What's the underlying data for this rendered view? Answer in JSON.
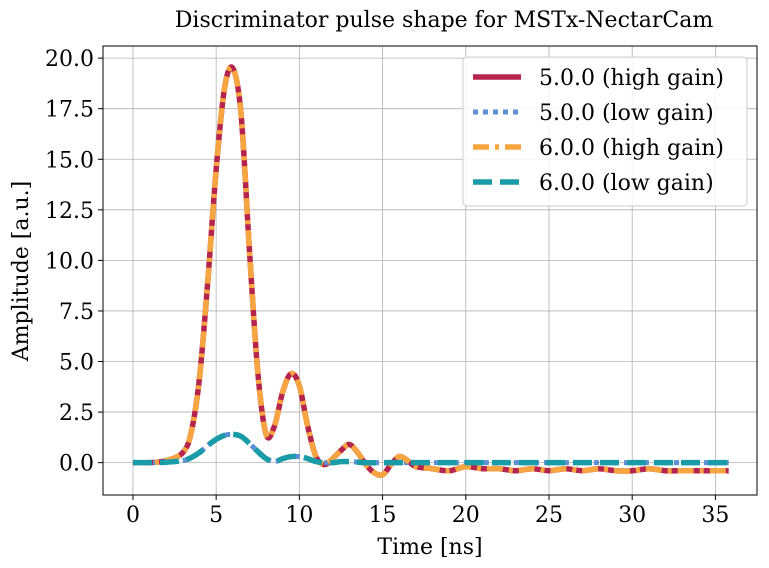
{
  "chart_data": {
    "type": "line",
    "title": "Discriminator pulse shape for MSTx-NectarCam",
    "xlabel": "Time [ns]",
    "ylabel": "Amplitude [a.u.]",
    "xlim": [
      -1.8,
      37.5
    ],
    "ylim": [
      -1.6,
      20.6
    ],
    "x_ticks": [
      0,
      5,
      10,
      15,
      20,
      25,
      30,
      35
    ],
    "x_tick_labels": [
      "0",
      "5",
      "10",
      "15",
      "20",
      "25",
      "30",
      "35"
    ],
    "y_ticks": [
      0.0,
      2.5,
      5.0,
      7.5,
      10.0,
      12.5,
      15.0,
      17.5,
      20.0
    ],
    "y_tick_labels": [
      "0.0",
      "2.5",
      "5.0",
      "7.5",
      "10.0",
      "12.5",
      "15.0",
      "17.5",
      "20.0"
    ],
    "grid": true,
    "legend_position": "top-right",
    "series": [
      {
        "name": "5.0.0 (high gain)",
        "color": "#b5234f",
        "style": "solid",
        "x": [
          0,
          1,
          2,
          3,
          3.5,
          4,
          4.5,
          5,
          5.5,
          6,
          6.5,
          7,
          7.5,
          8,
          8.5,
          9,
          9.5,
          10,
          10.5,
          11,
          11.5,
          12,
          12.5,
          13,
          13.5,
          14,
          14.5,
          15,
          15.5,
          16,
          16.5,
          17,
          18,
          19,
          20,
          21,
          22,
          23,
          24,
          25,
          26,
          27,
          28,
          29,
          30,
          31,
          32,
          33,
          34,
          35,
          35.8
        ],
        "values": [
          0.0,
          0.0,
          0.1,
          0.5,
          1.5,
          4.2,
          9.0,
          14.5,
          18.5,
          19.5,
          17.2,
          10.5,
          4.5,
          1.4,
          1.8,
          3.5,
          4.4,
          3.8,
          1.8,
          0.3,
          -0.1,
          0.2,
          0.6,
          0.9,
          0.5,
          -0.1,
          -0.5,
          -0.6,
          -0.1,
          0.3,
          0.1,
          -0.2,
          -0.3,
          -0.4,
          -0.2,
          -0.3,
          -0.3,
          -0.4,
          -0.3,
          -0.4,
          -0.3,
          -0.4,
          -0.3,
          -0.4,
          -0.4,
          -0.3,
          -0.4,
          -0.4,
          -0.4,
          -0.4,
          -0.4
        ]
      },
      {
        "name": "5.0.0 (low gain)",
        "color": "#5b8fd6",
        "style": "dotted",
        "x": [
          0,
          1,
          2,
          3,
          3.5,
          4,
          4.5,
          5,
          5.5,
          6,
          6.5,
          7,
          7.5,
          8,
          8.5,
          9,
          9.5,
          10,
          10.5,
          11,
          11.5,
          12,
          12.5,
          13,
          14,
          15,
          16,
          18,
          20,
          25,
          30,
          35,
          35.8
        ],
        "values": [
          0.0,
          0.0,
          0.02,
          0.1,
          0.25,
          0.5,
          0.85,
          1.15,
          1.35,
          1.4,
          1.3,
          0.95,
          0.55,
          0.2,
          0.05,
          0.2,
          0.3,
          0.3,
          0.2,
          0.05,
          0.0,
          0.0,
          0.05,
          0.05,
          0.0,
          0.0,
          0.0,
          0.0,
          0.0,
          0.0,
          0.0,
          0.0,
          0.0
        ]
      },
      {
        "name": "6.0.0 (high gain)",
        "color": "#f7a541",
        "style": "dashdot",
        "x": [
          0,
          1,
          2,
          3,
          3.5,
          4,
          4.5,
          5,
          5.5,
          6,
          6.5,
          7,
          7.5,
          8,
          8.5,
          9,
          9.5,
          10,
          10.5,
          11,
          11.5,
          12,
          12.5,
          13,
          13.5,
          14,
          14.5,
          15,
          15.5,
          16,
          16.5,
          17,
          18,
          19,
          20,
          21,
          22,
          23,
          24,
          25,
          26,
          27,
          28,
          29,
          30,
          31,
          32,
          33,
          34,
          35,
          35.8
        ],
        "values": [
          0.0,
          0.0,
          0.1,
          0.5,
          1.5,
          4.2,
          9.0,
          14.5,
          18.5,
          19.5,
          17.2,
          10.5,
          4.5,
          1.4,
          1.8,
          3.5,
          4.4,
          3.8,
          1.8,
          0.3,
          -0.1,
          0.2,
          0.6,
          0.9,
          0.5,
          -0.1,
          -0.5,
          -0.6,
          -0.1,
          0.3,
          0.1,
          -0.2,
          -0.3,
          -0.4,
          -0.2,
          -0.3,
          -0.3,
          -0.4,
          -0.3,
          -0.4,
          -0.3,
          -0.4,
          -0.3,
          -0.4,
          -0.4,
          -0.3,
          -0.4,
          -0.4,
          -0.4,
          -0.4,
          -0.4
        ]
      },
      {
        "name": "6.0.0 (low gain)",
        "color": "#1a9ba8",
        "style": "dashed",
        "x": [
          0,
          1,
          2,
          3,
          3.5,
          4,
          4.5,
          5,
          5.5,
          6,
          6.5,
          7,
          7.5,
          8,
          8.5,
          9,
          9.5,
          10,
          10.5,
          11,
          11.5,
          12,
          12.5,
          13,
          14,
          15,
          16,
          18,
          20,
          25,
          30,
          35,
          35.8
        ],
        "values": [
          0.0,
          0.0,
          0.02,
          0.1,
          0.25,
          0.5,
          0.85,
          1.15,
          1.35,
          1.4,
          1.3,
          0.95,
          0.55,
          0.2,
          0.05,
          0.2,
          0.3,
          0.3,
          0.2,
          0.05,
          0.0,
          0.0,
          0.05,
          0.05,
          0.0,
          0.0,
          0.0,
          0.0,
          0.0,
          0.0,
          0.0,
          0.0,
          0.0
        ]
      }
    ]
  }
}
